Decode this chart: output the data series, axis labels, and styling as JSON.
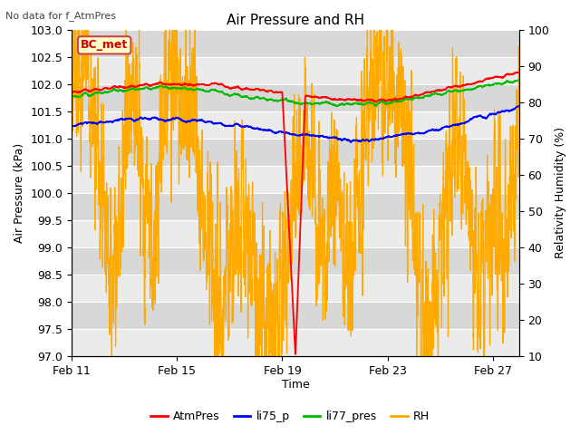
{
  "title": "Air Pressure and RH",
  "top_left_note": "No data for f_AtmPres",
  "xlabel": "Time",
  "ylabel_left": "Air Pressure (kPa)",
  "ylabel_right": "Relativity Humidity (%)",
  "box_label": "BC_met",
  "ylim_left": [
    97.0,
    103.0
  ],
  "ylim_right": [
    10,
    100
  ],
  "yticks_left": [
    97.0,
    97.5,
    98.0,
    98.5,
    99.0,
    99.5,
    100.0,
    100.5,
    101.0,
    101.5,
    102.0,
    102.5,
    103.0
  ],
  "yticks_right": [
    10,
    20,
    30,
    40,
    50,
    60,
    70,
    80,
    90,
    100
  ],
  "xtick_labels": [
    "Feb 11",
    "Feb 15",
    "Feb 19",
    "Feb 23",
    "Feb 27"
  ],
  "xtick_pos": [
    0,
    4,
    8,
    12,
    16
  ],
  "xlim": [
    0,
    17
  ],
  "legend_entries": [
    "AtmPres",
    "li75_p",
    "li77_pres",
    "RH"
  ],
  "legend_colors": [
    "#ff0000",
    "#0000ff",
    "#00bb00",
    "#ffaa00"
  ],
  "bg_color": "#ffffff",
  "plot_bg_light": "#ebebeb",
  "plot_bg_dark": "#d8d8d8",
  "grid_color": "#ffffff",
  "box_facecolor": "#ffffcc",
  "box_edgecolor": "#cc4444",
  "box_textcolor": "#cc0000",
  "note_color": "#444444",
  "title_fontsize": 11,
  "label_fontsize": 9,
  "tick_fontsize": 9,
  "note_fontsize": 8,
  "legend_fontsize": 9
}
